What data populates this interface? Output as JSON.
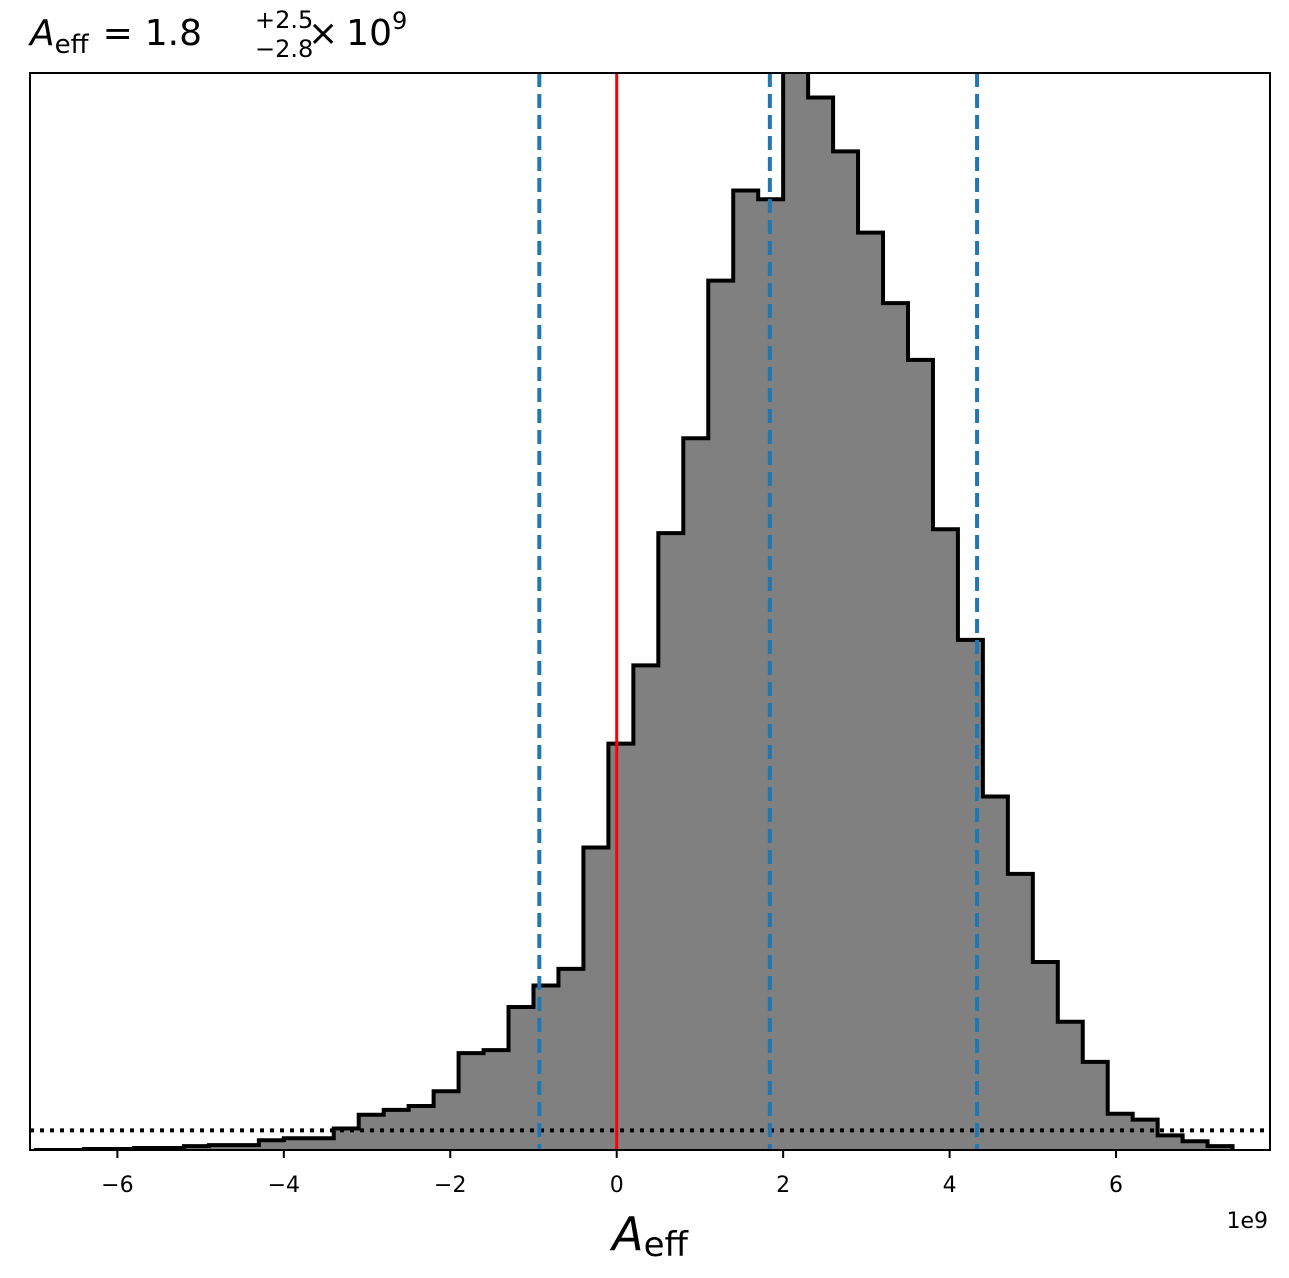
{
  "chart_data": {
    "type": "histogram",
    "title": {
      "symbol": "A",
      "subscript": "eff",
      "equals": "=",
      "median": "1.8",
      "upper": "+2.5",
      "lower": "−2.8",
      "times": "×",
      "base": "10",
      "exponent": "9"
    },
    "xlabel": {
      "symbol": "A",
      "subscript": "eff"
    },
    "x_offset_label": "1e9",
    "xlim": [
      -7.05,
      7.85
    ],
    "ylim": [
      0,
      1100
    ],
    "x_ticks": [
      -6,
      -4,
      -2,
      0,
      2,
      4,
      6
    ],
    "x_tick_labels": [
      "−6",
      "−4",
      "−2",
      "0",
      "2",
      "4",
      "6"
    ],
    "bin_edges": [
      -7.0,
      -6.7,
      -6.4,
      -6.1,
      -5.8,
      -5.5,
      -5.2,
      -4.9,
      -4.6,
      -4.3,
      -4.0,
      -3.7,
      -3.4,
      -3.1,
      -2.8,
      -2.5,
      -2.2,
      -1.9,
      -1.6,
      -1.3,
      -1.0,
      -0.7,
      -0.4,
      -0.1,
      0.2,
      0.5,
      0.8,
      1.1,
      1.4,
      1.7,
      2.0,
      2.3,
      2.6,
      2.9,
      3.2,
      3.5,
      3.8,
      4.1,
      4.4,
      4.7,
      5.0,
      5.3,
      5.6,
      5.9,
      6.2,
      6.5,
      6.8,
      7.1,
      7.4
    ],
    "counts": [
      0,
      0,
      1,
      1,
      2,
      2,
      4,
      5,
      5,
      10,
      12,
      12,
      22,
      36,
      41,
      45,
      60,
      99,
      102,
      146,
      168,
      185,
      309,
      415,
      495,
      630,
      727,
      888,
      980,
      971,
      1148,
      1075,
      1020,
      937,
      865,
      807,
      634,
      521,
      361,
      282,
      192,
      131,
      90,
      37,
      31,
      15,
      9,
      4
    ],
    "bar_color": "#808080",
    "edge_color": "#000000",
    "vertical_lines": [
      {
        "x": 0.0,
        "style": "solid",
        "color": "#ff0000"
      },
      {
        "x": -0.93,
        "style": "dashed",
        "color": "#1f77b4"
      },
      {
        "x": 1.84,
        "style": "dashed",
        "color": "#1f77b4"
      },
      {
        "x": 4.33,
        "style": "dashed",
        "color": "#1f77b4"
      }
    ],
    "horizontal_line": {
      "y": 20,
      "style": "dotted",
      "color": "#000000"
    },
    "grid": false,
    "legend": "none"
  }
}
